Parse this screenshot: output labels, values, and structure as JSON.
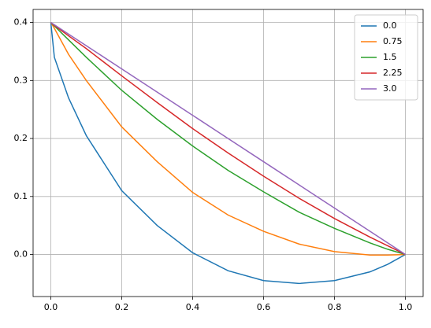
{
  "chart_data": {
    "type": "line",
    "x": [
      0,
      0.01,
      0.05,
      0.1,
      0.2,
      0.3,
      0.4,
      0.5,
      0.6,
      0.7,
      0.8,
      0.9,
      0.95,
      1
    ],
    "series": [
      {
        "name": "0.0",
        "color": "#1f77b4",
        "values": [
          0.4,
          0.34,
          0.27,
          0.205,
          0.11,
          0.05,
          0.003,
          -0.028,
          -0.045,
          -0.05,
          -0.045,
          -0.03,
          -0.017,
          0
        ]
      },
      {
        "name": "0.75",
        "color": "#ff7f0e",
        "values": [
          0.4,
          0.39,
          0.345,
          0.3,
          0.22,
          0.16,
          0.107,
          0.068,
          0.04,
          0.018,
          0.005,
          -0.001,
          -0.001,
          0
        ]
      },
      {
        "name": "1.5",
        "color": "#2ca02c",
        "values": [
          0.4,
          0.394,
          0.37,
          0.34,
          0.283,
          0.233,
          0.187,
          0.145,
          0.108,
          0.073,
          0.045,
          0.02,
          0.009,
          0
        ]
      },
      {
        "name": "2.25",
        "color": "#d62728",
        "values": [
          0.4,
          0.395,
          0.377,
          0.355,
          0.308,
          0.262,
          0.217,
          0.175,
          0.135,
          0.097,
          0.062,
          0.03,
          0.015,
          0
        ]
      },
      {
        "name": "3.0",
        "color": "#9467bd",
        "values": [
          0.4,
          0.396,
          0.38,
          0.36,
          0.32,
          0.28,
          0.24,
          0.2,
          0.16,
          0.12,
          0.08,
          0.04,
          0.02,
          0
        ]
      }
    ],
    "xlim": [
      -0.05,
      1.05
    ],
    "ylim": [
      -0.0725,
      0.4225
    ],
    "xticks": [
      {
        "value": 0,
        "label": "0.0"
      },
      0.2,
      0.4,
      0.6,
      0.8,
      {
        "value": 1,
        "label": "1.0"
      }
    ],
    "yticks": [
      {
        "value": 0,
        "label": "0.0"
      },
      0.1,
      0.2,
      0.3,
      0.4
    ],
    "grid": true,
    "legend": "upper right"
  }
}
